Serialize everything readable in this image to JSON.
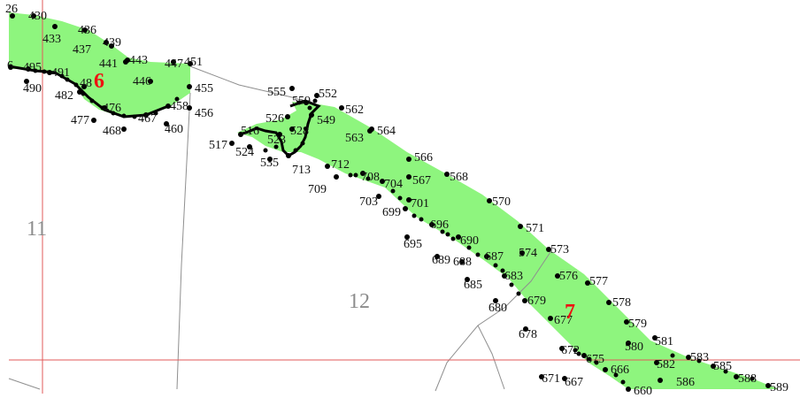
{
  "map": {
    "colors": {
      "fill": "#8ef57e",
      "grid_line": "#e15a5a",
      "boundary": "#8f8f8f",
      "point": "#000000",
      "area_label": "#ee1111",
      "parcel_label": "#8c8c8c"
    },
    "parcel_numbers": [
      "11",
      "12"
    ],
    "area_labels": [
      "6",
      "7"
    ],
    "points": [
      "26",
      "430",
      "433",
      "436",
      "437",
      "439",
      "441",
      "443",
      "447",
      "451",
      "446",
      "6",
      "495",
      "491",
      "490",
      "48",
      "482",
      "476",
      "477",
      "468",
      "467",
      "458",
      "460",
      "455",
      "456",
      "555",
      "559",
      "552",
      "549",
      "562",
      "526",
      "528",
      "516",
      "517",
      "524",
      "523",
      "535",
      "713",
      "563",
      "564",
      "712",
      "566",
      "568",
      "709",
      "708",
      "704",
      "567",
      "703",
      "699",
      "701",
      "570",
      "696",
      "571",
      "695",
      "690",
      "689",
      "688",
      "687",
      "573",
      "574",
      "576",
      "577",
      "685",
      "683",
      "578",
      "679",
      "680",
      "677",
      "678",
      "579",
      "580",
      "581",
      "672",
      "675",
      "582",
      "583",
      "585",
      "666",
      "671",
      "667",
      "586",
      "588",
      "589",
      "660"
    ]
  }
}
